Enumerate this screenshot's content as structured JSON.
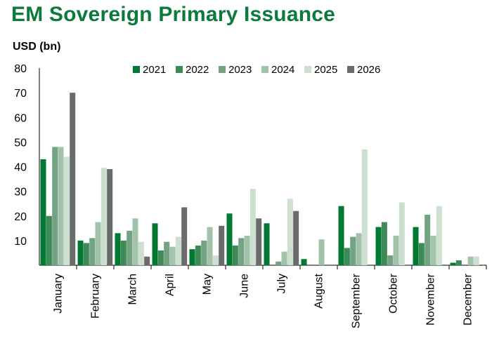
{
  "chart_data": {
    "type": "bar",
    "title": "EM Sovereign Primary Issuance",
    "ylabel": "USD (bn)",
    "xlabel": "",
    "ylim": [
      0,
      80
    ],
    "yticks": [
      10,
      20,
      30,
      40,
      50,
      60,
      70,
      80
    ],
    "legend_position": "top",
    "categories": [
      "January",
      "February",
      "March",
      "April",
      "May",
      "June",
      "July",
      "August",
      "September",
      "October",
      "November",
      "December"
    ],
    "series": [
      {
        "name": "2021",
        "color": "#007a33",
        "values": [
          43,
          10,
          13,
          17,
          6.5,
          21,
          17,
          2.5,
          24,
          15.5,
          15.5,
          1
        ]
      },
      {
        "name": "2022",
        "color": "#3e8a56",
        "values": [
          20,
          9,
          10,
          6,
          8,
          8,
          0,
          0,
          7,
          17.5,
          9,
          2
        ]
      },
      {
        "name": "2023",
        "color": "#74a383",
        "values": [
          48,
          11,
          14,
          9.5,
          10,
          11,
          1.5,
          0,
          11.5,
          4,
          20.5,
          0
        ]
      },
      {
        "name": "2024",
        "color": "#a2c3a9",
        "values": [
          48,
          17.5,
          19,
          7.5,
          15.5,
          12,
          5.5,
          10.5,
          13,
          12,
          12,
          3.5
        ]
      },
      {
        "name": "2025",
        "color": "#ccdfd0",
        "values": [
          44,
          39.5,
          9.5,
          11.5,
          4,
          31,
          27,
          0,
          47,
          25.5,
          24,
          3.5
        ]
      },
      {
        "name": "2026",
        "color": "#6b6b6b",
        "values": [
          70,
          39,
          3.5,
          23.5,
          16,
          19,
          22,
          0,
          0,
          0,
          0,
          0
        ]
      }
    ]
  }
}
